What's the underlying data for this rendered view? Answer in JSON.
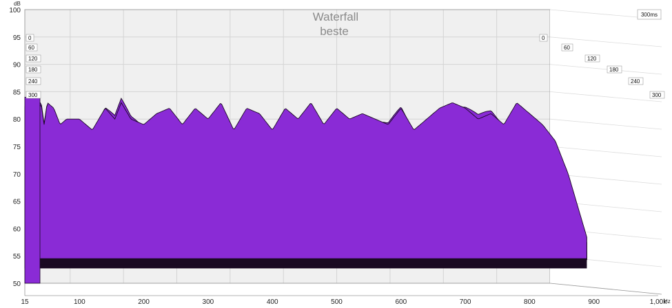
{
  "chart_data": {
    "type": "area",
    "title": "Waterfall",
    "subtitle": "beste",
    "ylabel": "dB",
    "xunit": "Hz",
    "depth_label": "300ms",
    "ylim": [
      50,
      100
    ],
    "xlim": [
      15,
      1000
    ],
    "y_ticks": [
      "100",
      "95",
      "90",
      "85",
      "80",
      "75",
      "70",
      "65",
      "60",
      "55",
      "50"
    ],
    "x_ticks": [
      {
        "value": 15,
        "label": "15"
      },
      {
        "value": 100,
        "label": "100"
      },
      {
        "value": 200,
        "label": "200"
      },
      {
        "value": 300,
        "label": "300"
      },
      {
        "value": 400,
        "label": "400"
      },
      {
        "value": 500,
        "label": "500"
      },
      {
        "value": 600,
        "label": "600"
      },
      {
        "value": 700,
        "label": "700"
      },
      {
        "value": 800,
        "label": "800"
      },
      {
        "value": 900,
        "label": "900"
      },
      {
        "value": 1000,
        "label": "1,00k"
      }
    ],
    "slice_labels": [
      "0",
      "60",
      "120",
      "180",
      "240",
      "300"
    ],
    "fill_color": "#8a2bd6",
    "line_color": "#1a0a22",
    "grid": true,
    "front_response": {
      "freq": [
        15,
        20,
        25,
        30,
        35,
        40,
        45,
        50,
        60,
        70,
        80,
        100,
        120,
        140,
        155,
        165,
        180,
        200,
        220,
        240,
        260,
        280,
        300,
        320,
        340,
        360,
        380,
        400,
        420,
        440,
        460,
        480,
        500,
        520,
        540,
        560,
        580,
        600,
        620,
        640,
        660,
        680,
        700,
        720,
        740,
        760,
        780,
        800,
        820,
        840,
        860,
        880,
        890
      ],
      "db": [
        82,
        85,
        80,
        84,
        81,
        83,
        79,
        83,
        82,
        79,
        80,
        80,
        78,
        82,
        80,
        83,
        80,
        79,
        81,
        82,
        79,
        82,
        80,
        83,
        78,
        82,
        81,
        78,
        82,
        80,
        83,
        79,
        82,
        80,
        81,
        80,
        79,
        82,
        78,
        80,
        82,
        83,
        82,
        80,
        81,
        79,
        83,
        81,
        79,
        76,
        70,
        62,
        58
      ]
    }
  }
}
